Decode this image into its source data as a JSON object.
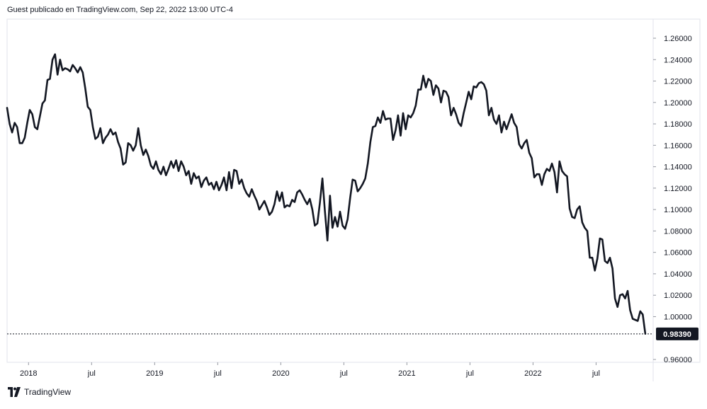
{
  "header": {
    "text": "Guest publicado en TradingView.com, Sep 22, 2022 13:00 UTC-4"
  },
  "footer": {
    "brand": "TradingView",
    "logo_icon": "tradingview-logo-icon"
  },
  "colors": {
    "line": "#131722",
    "grid": "#e0e3eb",
    "label_bg": "#131722",
    "background": "#ffffff"
  },
  "chart_data": {
    "type": "line",
    "title": "",
    "xlabel": "",
    "ylabel": "",
    "ylim": [
      0.96,
      1.27
    ],
    "xlim": [
      2017.83,
      2022.93
    ],
    "grid": false,
    "last_price": {
      "value": 0.9839,
      "label": "0.98390"
    },
    "y_ticks": [
      {
        "value": 1.26,
        "label": "1.26000"
      },
      {
        "value": 1.24,
        "label": "1.24000"
      },
      {
        "value": 1.22,
        "label": "1.22000"
      },
      {
        "value": 1.2,
        "label": "1.20000"
      },
      {
        "value": 1.18,
        "label": "1.18000"
      },
      {
        "value": 1.16,
        "label": "1.16000"
      },
      {
        "value": 1.14,
        "label": "1.14000"
      },
      {
        "value": 1.12,
        "label": "1.12000"
      },
      {
        "value": 1.1,
        "label": "1.10000"
      },
      {
        "value": 1.08,
        "label": "1.08000"
      },
      {
        "value": 1.06,
        "label": "1.06000"
      },
      {
        "value": 1.04,
        "label": "1.04000"
      },
      {
        "value": 1.02,
        "label": "1.02000"
      },
      {
        "value": 1.0,
        "label": "1.00000"
      },
      {
        "value": 0.96,
        "label": "0.96000"
      }
    ],
    "x_ticks": [
      {
        "value": 2018.0,
        "label": "2018"
      },
      {
        "value": 2018.5,
        "label": "jul"
      },
      {
        "value": 2019.0,
        "label": "2019"
      },
      {
        "value": 2019.5,
        "label": "jul"
      },
      {
        "value": 2020.0,
        "label": "2020"
      },
      {
        "value": 2020.5,
        "label": "jul"
      },
      {
        "value": 2021.0,
        "label": "2021"
      },
      {
        "value": 2021.5,
        "label": "jul"
      },
      {
        "value": 2022.0,
        "label": "2022"
      },
      {
        "value": 2022.5,
        "label": "jul"
      }
    ],
    "series": [
      {
        "points": [
          [
            2017.83,
            1.195
          ],
          [
            2017.85,
            1.18
          ],
          [
            2017.87,
            1.172
          ],
          [
            2017.89,
            1.181
          ],
          [
            2017.91,
            1.177
          ],
          [
            2017.93,
            1.162
          ],
          [
            2017.95,
            1.162
          ],
          [
            2017.97,
            1.167
          ],
          [
            2017.99,
            1.181
          ],
          [
            2018.01,
            1.193
          ],
          [
            2018.03,
            1.189
          ],
          [
            2018.05,
            1.177
          ],
          [
            2018.07,
            1.175
          ],
          [
            2018.09,
            1.187
          ],
          [
            2018.11,
            1.199
          ],
          [
            2018.13,
            1.202
          ],
          [
            2018.15,
            1.221
          ],
          [
            2018.17,
            1.222
          ],
          [
            2018.19,
            1.24
          ],
          [
            2018.21,
            1.245
          ],
          [
            2018.23,
            1.226
          ],
          [
            2018.25,
            1.24
          ],
          [
            2018.27,
            1.23
          ],
          [
            2018.29,
            1.232
          ],
          [
            2018.31,
            1.231
          ],
          [
            2018.33,
            1.229
          ],
          [
            2018.35,
            1.235
          ],
          [
            2018.37,
            1.232
          ],
          [
            2018.39,
            1.228
          ],
          [
            2018.41,
            1.233
          ],
          [
            2018.43,
            1.228
          ],
          [
            2018.45,
            1.213
          ],
          [
            2018.47,
            1.196
          ],
          [
            2018.49,
            1.193
          ],
          [
            2018.51,
            1.177
          ],
          [
            2018.53,
            1.166
          ],
          [
            2018.55,
            1.168
          ],
          [
            2018.57,
            1.176
          ],
          [
            2018.59,
            1.162
          ],
          [
            2018.61,
            1.167
          ],
          [
            2018.63,
            1.17
          ],
          [
            2018.65,
            1.175
          ],
          [
            2018.67,
            1.17
          ],
          [
            2018.69,
            1.172
          ],
          [
            2018.71,
            1.163
          ],
          [
            2018.73,
            1.157
          ],
          [
            2018.75,
            1.142
          ],
          [
            2018.77,
            1.144
          ],
          [
            2018.79,
            1.162
          ],
          [
            2018.81,
            1.16
          ],
          [
            2018.83,
            1.155
          ],
          [
            2018.85,
            1.16
          ],
          [
            2018.87,
            1.176
          ],
          [
            2018.89,
            1.16
          ],
          [
            2018.91,
            1.151
          ],
          [
            2018.93,
            1.156
          ],
          [
            2018.95,
            1.15
          ],
          [
            2018.97,
            1.141
          ],
          [
            2018.99,
            1.138
          ],
          [
            2019.01,
            1.145
          ],
          [
            2019.03,
            1.137
          ],
          [
            2019.05,
            1.133
          ],
          [
            2019.07,
            1.14
          ],
          [
            2019.09,
            1.132
          ],
          [
            2019.11,
            1.138
          ],
          [
            2019.13,
            1.145
          ],
          [
            2019.15,
            1.139
          ],
          [
            2019.17,
            1.146
          ],
          [
            2019.19,
            1.136
          ],
          [
            2019.21,
            1.145
          ],
          [
            2019.23,
            1.14
          ],
          [
            2019.25,
            1.132
          ],
          [
            2019.27,
            1.136
          ],
          [
            2019.29,
            1.124
          ],
          [
            2019.31,
            1.134
          ],
          [
            2019.33,
            1.129
          ],
          [
            2019.35,
            1.131
          ],
          [
            2019.37,
            1.121
          ],
          [
            2019.39,
            1.127
          ],
          [
            2019.41,
            1.13
          ],
          [
            2019.43,
            1.123
          ],
          [
            2019.45,
            1.125
          ],
          [
            2019.47,
            1.119
          ],
          [
            2019.49,
            1.126
          ],
          [
            2019.51,
            1.118
          ],
          [
            2019.53,
            1.123
          ],
          [
            2019.55,
            1.13
          ],
          [
            2019.57,
            1.118
          ],
          [
            2019.59,
            1.135
          ],
          [
            2019.61,
            1.12
          ],
          [
            2019.63,
            1.137
          ],
          [
            2019.65,
            1.136
          ],
          [
            2019.67,
            1.124
          ],
          [
            2019.69,
            1.128
          ],
          [
            2019.71,
            1.12
          ],
          [
            2019.73,
            1.115
          ],
          [
            2019.75,
            1.112
          ],
          [
            2019.77,
            1.119
          ],
          [
            2019.79,
            1.113
          ],
          [
            2019.81,
            1.108
          ],
          [
            2019.83,
            1.1
          ],
          [
            2019.85,
            1.104
          ],
          [
            2019.87,
            1.108
          ],
          [
            2019.89,
            1.102
          ],
          [
            2019.91,
            1.095
          ],
          [
            2019.93,
            1.098
          ],
          [
            2019.95,
            1.105
          ],
          [
            2019.97,
            1.117
          ],
          [
            2019.99,
            1.108
          ],
          [
            2020.01,
            1.116
          ],
          [
            2020.03,
            1.102
          ],
          [
            2020.05,
            1.104
          ],
          [
            2020.07,
            1.103
          ],
          [
            2020.09,
            1.109
          ],
          [
            2020.11,
            1.107
          ],
          [
            2020.13,
            1.116
          ],
          [
            2020.15,
            1.118
          ],
          [
            2020.17,
            1.114
          ],
          [
            2020.19,
            1.109
          ],
          [
            2020.21,
            1.105
          ],
          [
            2020.23,
            1.11
          ],
          [
            2020.25,
            1.1
          ],
          [
            2020.27,
            1.085
          ],
          [
            2020.29,
            1.087
          ],
          [
            2020.31,
            1.106
          ],
          [
            2020.33,
            1.129
          ],
          [
            2020.35,
            1.098
          ],
          [
            2020.37,
            1.071
          ],
          [
            2020.39,
            1.113
          ],
          [
            2020.41,
            1.083
          ],
          [
            2020.43,
            1.093
          ],
          [
            2020.45,
            1.084
          ],
          [
            2020.47,
            1.098
          ],
          [
            2020.49,
            1.085
          ],
          [
            2020.51,
            1.082
          ],
          [
            2020.53,
            1.091
          ],
          [
            2020.55,
            1.111
          ],
          [
            2020.57,
            1.128
          ],
          [
            2020.59,
            1.127
          ],
          [
            2020.61,
            1.117
          ],
          [
            2020.63,
            1.12
          ],
          [
            2020.65,
            1.124
          ],
          [
            2020.67,
            1.129
          ],
          [
            2020.69,
            1.143
          ],
          [
            2020.71,
            1.163
          ],
          [
            2020.73,
            1.177
          ],
          [
            2020.75,
            1.178
          ],
          [
            2020.77,
            1.186
          ],
          [
            2020.79,
            1.181
          ],
          [
            2020.81,
            1.192
          ],
          [
            2020.83,
            1.184
          ],
          [
            2020.85,
            1.185
          ],
          [
            2020.87,
            1.185
          ],
          [
            2020.89,
            1.165
          ],
          [
            2020.91,
            1.174
          ],
          [
            2020.93,
            1.188
          ],
          [
            2020.95,
            1.169
          ],
          [
            2020.97,
            1.19
          ],
          [
            2020.99,
            1.175
          ],
          [
            2021.01,
            1.188
          ],
          [
            2021.03,
            1.186
          ],
          [
            2021.05,
            1.19
          ],
          [
            2021.07,
            1.197
          ],
          [
            2021.09,
            1.212
          ],
          [
            2021.11,
            1.212
          ],
          [
            2021.13,
            1.225
          ],
          [
            2021.15,
            1.214
          ],
          [
            2021.17,
            1.222
          ],
          [
            2021.19,
            1.22
          ],
          [
            2021.21,
            1.207
          ],
          [
            2021.23,
            1.216
          ],
          [
            2021.25,
            1.213
          ],
          [
            2021.27,
            1.2
          ],
          [
            2021.29,
            1.211
          ],
          [
            2021.31,
            1.21
          ],
          [
            2021.33,
            1.205
          ],
          [
            2021.35,
            1.188
          ],
          [
            2021.37,
            1.195
          ],
          [
            2021.39,
            1.189
          ],
          [
            2021.41,
            1.181
          ],
          [
            2021.43,
            1.178
          ],
          [
            2021.45,
            1.19
          ],
          [
            2021.47,
            1.2
          ],
          [
            2021.49,
            1.21
          ],
          [
            2021.51,
            1.203
          ],
          [
            2021.53,
            1.215
          ],
          [
            2021.55,
            1.214
          ],
          [
            2021.57,
            1.218
          ],
          [
            2021.59,
            1.219
          ],
          [
            2021.61,
            1.217
          ],
          [
            2021.63,
            1.211
          ],
          [
            2021.65,
            1.188
          ],
          [
            2021.67,
            1.195
          ],
          [
            2021.69,
            1.184
          ],
          [
            2021.71,
            1.18
          ],
          [
            2021.73,
            1.188
          ],
          [
            2021.75,
            1.172
          ],
          [
            2021.77,
            1.182
          ],
          [
            2021.79,
            1.175
          ],
          [
            2021.81,
            1.182
          ],
          [
            2021.83,
            1.189
          ],
          [
            2021.85,
            1.181
          ],
          [
            2021.87,
            1.177
          ],
          [
            2021.89,
            1.161
          ],
          [
            2021.91,
            1.157
          ],
          [
            2021.93,
            1.162
          ],
          [
            2021.95,
            1.165
          ],
          [
            2021.97,
            1.153
          ],
          [
            2021.99,
            1.148
          ],
          [
            2022.01,
            1.13
          ],
          [
            2022.03,
            1.133
          ],
          [
            2022.05,
            1.133
          ],
          [
            2022.07,
            1.123
          ],
          [
            2022.09,
            1.133
          ],
          [
            2022.11,
            1.138
          ],
          [
            2022.13,
            1.136
          ],
          [
            2022.15,
            1.143
          ],
          [
            2022.17,
            1.135
          ],
          [
            2022.19,
            1.116
          ],
          [
            2022.21,
            1.145
          ],
          [
            2022.23,
            1.136
          ],
          [
            2022.25,
            1.133
          ],
          [
            2022.27,
            1.131
          ],
          [
            2022.29,
            1.101
          ],
          [
            2022.31,
            1.093
          ],
          [
            2022.33,
            1.092
          ],
          [
            2022.35,
            1.1
          ],
          [
            2022.37,
            1.103
          ],
          [
            2022.39,
            1.088
          ],
          [
            2022.41,
            1.083
          ],
          [
            2022.43,
            1.08
          ],
          [
            2022.45,
            1.055
          ],
          [
            2022.47,
            1.055
          ],
          [
            2022.49,
            1.043
          ],
          [
            2022.51,
            1.054
          ],
          [
            2022.53,
            1.073
          ],
          [
            2022.55,
            1.072
          ],
          [
            2022.57,
            1.052
          ],
          [
            2022.59,
            1.05
          ],
          [
            2022.61,
            1.055
          ],
          [
            2022.63,
            1.045
          ],
          [
            2022.65,
            1.017
          ],
          [
            2022.67,
            1.009
          ],
          [
            2022.69,
            1.02
          ],
          [
            2022.71,
            1.021
          ],
          [
            2022.73,
            1.017
          ],
          [
            2022.75,
            1.024
          ],
          [
            2022.77,
            1.006
          ],
          [
            2022.79,
            0.998
          ],
          [
            2022.81,
            0.997
          ],
          [
            2022.83,
            0.996
          ],
          [
            2022.85,
            1.005
          ],
          [
            2022.87,
            1.002
          ],
          [
            2022.89,
            0.984
          ]
        ]
      }
    ]
  }
}
